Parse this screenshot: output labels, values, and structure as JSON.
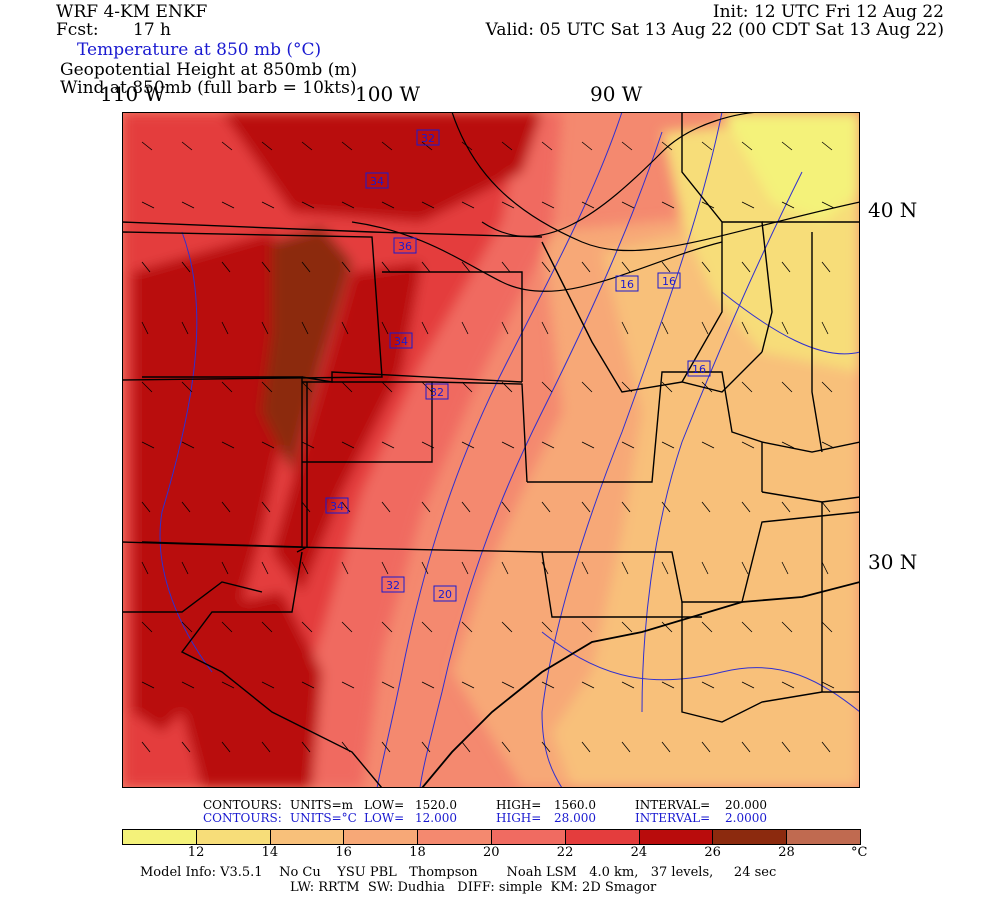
{
  "header": {
    "model": "WRF 4-KM ENKF",
    "fcst_label": "Fcst:",
    "fcst_value": "17 h",
    "init": "Init: 12 UTC Fri 12 Aug 22",
    "valid": "Valid: 05 UTC Sat 13 Aug 22 (00 CDT Sat 13 Aug 22)",
    "field1": "Temperature at 850 mb (°C)",
    "field2": "Geopotential Height at 850mb (m)",
    "field3": "Wind at 850mb (full barb = 10kts)"
  },
  "map": {
    "lon_labels": [
      "110 W",
      "100 W",
      "90 W"
    ],
    "lat_labels": [
      "40 N",
      "30 N"
    ],
    "height_labels": [
      "32",
      "34",
      "36",
      "34",
      "32",
      "34",
      "32",
      "20",
      "16",
      "16",
      "16"
    ],
    "colors": {
      "c12": "#f4f27a",
      "c14": "#f7dd79",
      "c16": "#f8c07a",
      "c18": "#f7a877",
      "c20": "#f4896f",
      "c22": "#f06b61",
      "c24": "#e43d3d",
      "c26": "#b90c0c",
      "c28": "#8c2a0e",
      "state": "#000000",
      "contour": "#3030d0"
    }
  },
  "colorbar": {
    "ticks": [
      "12",
      "14",
      "16",
      "18",
      "20",
      "22",
      "24",
      "26",
      "28"
    ],
    "unit": "°C",
    "colors": [
      "#f4f27a",
      "#f7dd79",
      "#f8c07a",
      "#f7a877",
      "#f4896f",
      "#f06b61",
      "#e43d3d",
      "#b90c0c",
      "#8c2a0e",
      "#c06a50"
    ]
  },
  "contours": {
    "row1": {
      "label": "CONTOURS:",
      "units": "UNITS=m",
      "low_label": "LOW=",
      "low": "1520.0",
      "high_label": "HIGH=",
      "high": "1560.0",
      "interval_label": "INTERVAL=",
      "interval": "20.000"
    },
    "row2": {
      "label": "CONTOURS:",
      "units": "UNITS=°C",
      "low_label": "LOW=",
      "low": "12.000",
      "high_label": "HIGH=",
      "high": "28.000",
      "interval_label": "INTERVAL=",
      "interval": "2.0000"
    }
  },
  "footer": {
    "line1": "Model Info: V3.5.1    No Cu    YSU PBL   Thompson       Noah LSM   4.0 km,   37 levels,     24 sec",
    "line2": "LW: RRTM  SW: Dudhia   DIFF: simple  KM: 2D Smagor"
  }
}
